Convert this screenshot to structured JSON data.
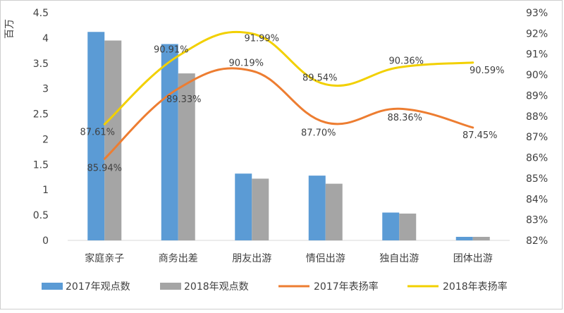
{
  "chart_data": {
    "type": "bar",
    "title": "",
    "categories": [
      "家庭亲子",
      "商务出差",
      "朋友出游",
      "情侣出游",
      "独自出游",
      "团体出游"
    ],
    "y_left": {
      "unit_label": "百万",
      "range": [
        0,
        4.5
      ],
      "ticks": [
        "0",
        "0.5",
        "1",
        "1.5",
        "2",
        "2.5",
        "3",
        "3.5",
        "4",
        "4.5"
      ]
    },
    "y_right": {
      "range": [
        82,
        93
      ],
      "ticks": [
        "82%",
        "83%",
        "84%",
        "85%",
        "86%",
        "87%",
        "88%",
        "89%",
        "90%",
        "91%",
        "92%",
        "93%"
      ]
    },
    "bar_series": [
      {
        "name": "2017年观点数",
        "color": "#5B9BD5",
        "values": [
          4.12,
          3.88,
          1.32,
          1.28,
          0.55,
          0.07
        ]
      },
      {
        "name": "2018年观点数",
        "color": "#A5A5A5",
        "values": [
          3.95,
          3.3,
          1.22,
          1.12,
          0.53,
          0.07
        ]
      }
    ],
    "line_series": [
      {
        "name": "2017年表扬率",
        "color": "#ED7D31",
        "axis": "right",
        "values": [
          85.94,
          89.33,
          90.19,
          87.7,
          88.36,
          87.45
        ],
        "labels": [
          "85.94%",
          "89.33%",
          "90.19%",
          "87.70%",
          "88.36%",
          "87.45%"
        ]
      },
      {
        "name": "2018年表扬率",
        "color": "#F2D000",
        "axis": "right",
        "values": [
          87.61,
          90.91,
          91.99,
          89.54,
          90.36,
          90.59
        ],
        "labels": [
          "87.61%",
          "90.91%",
          "91.99%",
          "89.54%",
          "90.36%",
          "90.59%"
        ]
      }
    ],
    "grid": false,
    "legend_position": "bottom"
  }
}
